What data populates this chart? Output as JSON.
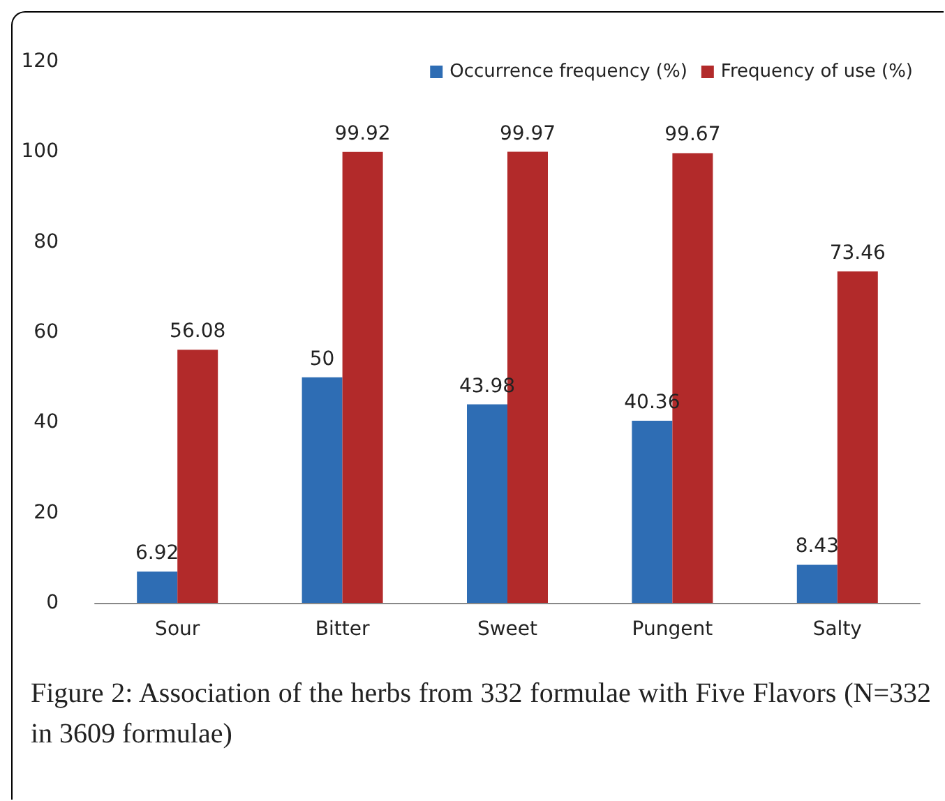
{
  "chart_data": {
    "type": "bar",
    "title": "Figure 2: Association of the herbs from 332 formulae with Five Flavors (N=332 in 3609 formulae)",
    "categories": [
      "Sour",
      "Bitter",
      "Sweet",
      "Pungent",
      "Salty"
    ],
    "series": [
      {
        "name": "Occurrence frequency (%)",
        "color": "#2e6db4",
        "values": [
          6.92,
          50,
          43.98,
          40.36,
          8.43
        ]
      },
      {
        "name": "Frequency of use (%)",
        "color": "#b22a2a",
        "values": [
          56.08,
          99.92,
          99.97,
          99.67,
          73.46
        ]
      }
    ],
    "ylim": [
      0,
      120
    ],
    "yticks": [
      0,
      20,
      40,
      60,
      80,
      100,
      120
    ],
    "grid": false,
    "legend": "top right",
    "data_labels": true
  }
}
